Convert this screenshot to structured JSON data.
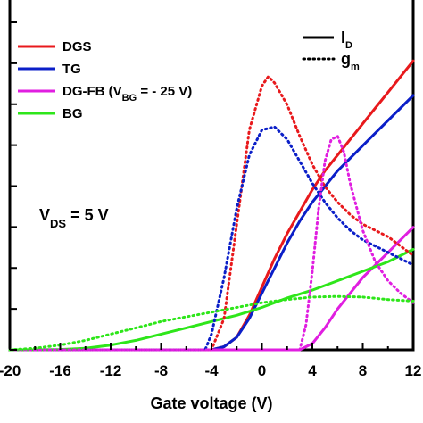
{
  "chart_data": {
    "type": "line",
    "title": "",
    "xlabel": "Gate voltage (V)",
    "ylabel": "",
    "xlim": [
      -20,
      12
    ],
    "ylim": [
      0,
      1
    ],
    "xticks": [
      -20,
      -16,
      -12,
      -8,
      -4,
      0,
      4,
      8,
      12
    ],
    "xtick_labels": [
      "-20",
      "-16",
      "-12",
      "-8",
      "-4",
      "0",
      "4",
      "8",
      "12"
    ],
    "y_tick_count": 9,
    "grid": false,
    "legend_position": "top-left",
    "colors": {
      "DGS": "#e8191c",
      "TG": "#0b1fc8",
      "DG-FB": "#e01ee0",
      "BG": "#2ee61a"
    },
    "legend": [
      {
        "key": "DGS",
        "main": "DGS",
        "sub": "",
        "tail": ""
      },
      {
        "key": "TG",
        "main": "TG",
        "sub": "",
        "tail": ""
      },
      {
        "key": "DG-FB",
        "main": "DG-FB (V",
        "sub": "BG",
        "tail": " = - 25 V)"
      },
      {
        "key": "BG",
        "main": "BG",
        "sub": "",
        "tail": ""
      }
    ],
    "style_legend": [
      {
        "style": "solid",
        "main": "I",
        "sub": "D"
      },
      {
        "style": "dotted",
        "main": "g",
        "sub": "m"
      }
    ],
    "annotation": {
      "main": "V",
      "sub": "DS",
      "tail": " = 5 V"
    },
    "series": [
      {
        "name": "DGS",
        "quantity": "I_D",
        "style": "solid",
        "x": [
          -20,
          -4,
          -3,
          -2,
          -1,
          0,
          1,
          2,
          3,
          4,
          5,
          6,
          7,
          8,
          9,
          10,
          11,
          12
        ],
        "y": [
          0,
          0,
          0.01,
          0.04,
          0.11,
          0.2,
          0.29,
          0.37,
          0.44,
          0.51,
          0.57,
          0.62,
          0.67,
          0.72,
          0.77,
          0.82,
          0.87,
          0.92
        ]
      },
      {
        "name": "TG",
        "quantity": "I_D",
        "style": "solid",
        "x": [
          -20,
          -4,
          -3,
          -2,
          -1,
          0,
          1,
          2,
          3,
          4,
          5,
          6,
          7,
          8,
          9,
          10,
          11,
          12
        ],
        "y": [
          0,
          0,
          0.01,
          0.04,
          0.1,
          0.18,
          0.26,
          0.34,
          0.41,
          0.47,
          0.52,
          0.57,
          0.61,
          0.65,
          0.69,
          0.73,
          0.77,
          0.81
        ]
      },
      {
        "name": "DG-FB",
        "quantity": "I_D",
        "style": "solid",
        "x": [
          -20,
          3,
          4,
          5,
          6,
          7,
          8,
          9,
          10,
          11,
          12
        ],
        "y": [
          0,
          0,
          0.02,
          0.07,
          0.13,
          0.18,
          0.23,
          0.27,
          0.31,
          0.35,
          0.39
        ]
      },
      {
        "name": "BG",
        "quantity": "I_D",
        "style": "solid",
        "x": [
          -20,
          -18,
          -16,
          -14,
          -12,
          -10,
          -8,
          -6,
          -4,
          -2,
          0,
          2,
          4,
          6,
          8,
          10,
          12
        ],
        "y": [
          0,
          0,
          0.001,
          0.005,
          0.015,
          0.03,
          0.05,
          0.07,
          0.09,
          0.11,
          0.135,
          0.165,
          0.19,
          0.22,
          0.25,
          0.28,
          0.32
        ]
      },
      {
        "name": "DGS",
        "quantity": "g_m",
        "style": "dotted",
        "x": [
          -20,
          -4,
          -3,
          -2,
          -1,
          0,
          0.5,
          1,
          2,
          3,
          4,
          5,
          6,
          7,
          8,
          9,
          10,
          11,
          12
        ],
        "y": [
          0,
          0,
          0.1,
          0.4,
          0.7,
          0.84,
          0.87,
          0.85,
          0.78,
          0.68,
          0.59,
          0.52,
          0.47,
          0.43,
          0.4,
          0.38,
          0.36,
          0.33,
          0.3
        ]
      },
      {
        "name": "TG",
        "quantity": "g_m",
        "style": "dotted",
        "x": [
          -20,
          -4.5,
          -4,
          -3,
          -2,
          -1,
          0,
          1,
          2,
          3,
          4,
          5,
          6,
          7,
          8,
          9,
          10,
          11,
          12
        ],
        "y": [
          0,
          0,
          0.05,
          0.23,
          0.45,
          0.62,
          0.7,
          0.71,
          0.67,
          0.6,
          0.53,
          0.47,
          0.42,
          0.38,
          0.35,
          0.33,
          0.31,
          0.29,
          0.27
        ]
      },
      {
        "name": "DG-FB",
        "quantity": "g_m",
        "style": "dotted",
        "x": [
          -20,
          3,
          3.5,
          4,
          4.5,
          5,
          5.5,
          6,
          6.5,
          7,
          8,
          9,
          10,
          11,
          12
        ],
        "y": [
          0,
          0,
          0.08,
          0.25,
          0.45,
          0.6,
          0.67,
          0.68,
          0.63,
          0.53,
          0.38,
          0.28,
          0.22,
          0.18,
          0.15
        ]
      },
      {
        "name": "BG",
        "quantity": "g_m",
        "style": "dotted",
        "x": [
          -20,
          -18,
          -16,
          -14,
          -12,
          -10,
          -8,
          -6,
          -4,
          -2,
          0,
          2,
          4,
          6,
          8,
          10,
          12
        ],
        "y": [
          0,
          0.005,
          0.015,
          0.03,
          0.05,
          0.07,
          0.09,
          0.105,
          0.12,
          0.135,
          0.15,
          0.16,
          0.168,
          0.17,
          0.168,
          0.16,
          0.155
        ]
      }
    ]
  }
}
